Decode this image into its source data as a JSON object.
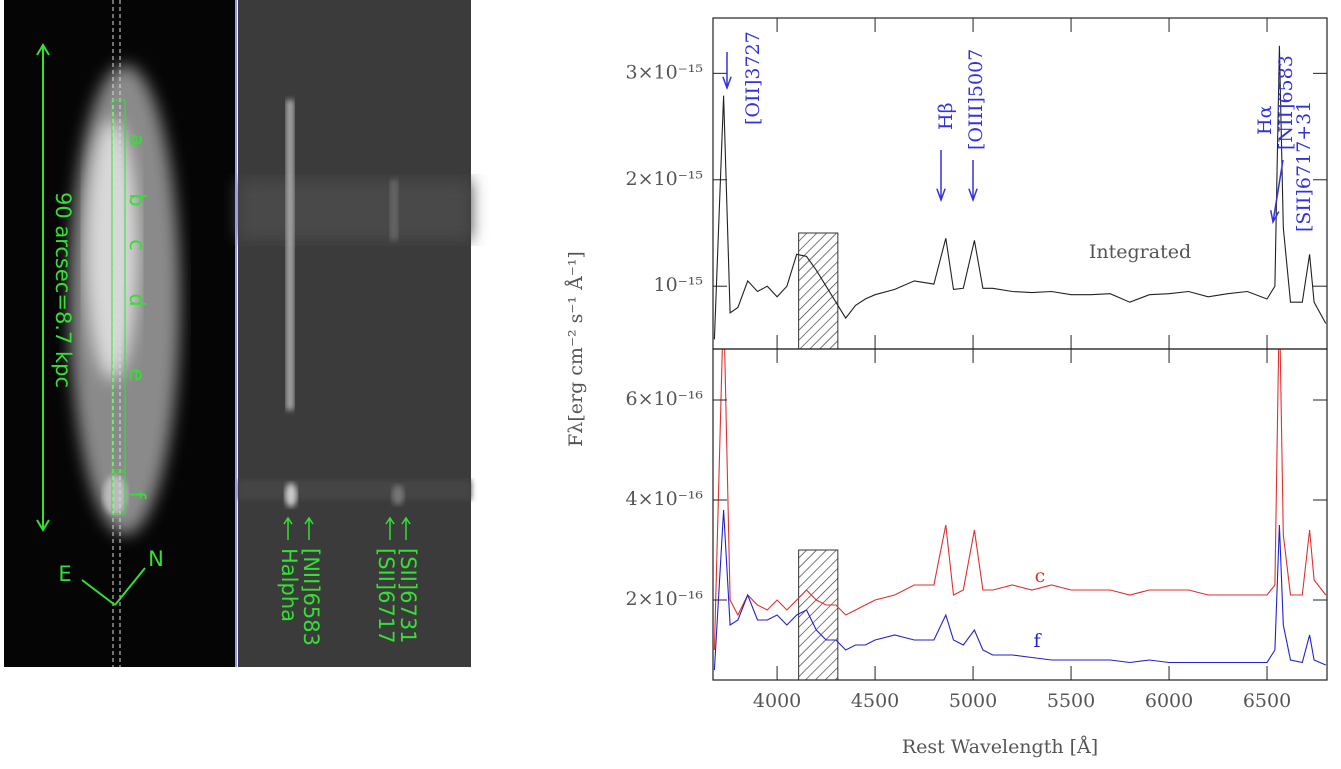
{
  "galaxy_image": {
    "scale_label": "90 arcsec=8.7 kpc",
    "regions": [
      "a",
      "b",
      "c",
      "d",
      "e",
      "f"
    ],
    "compass": [
      "E",
      "N"
    ]
  },
  "spectrum_image": {
    "lines": [
      "Halpha",
      "[NII]6583",
      "[SII]6717",
      "[SII]6731"
    ]
  },
  "chart_data": [
    {
      "type": "line",
      "ylabel": "Fλ[erg cm⁻² s⁻¹ Å⁻¹]",
      "x": [
        3680,
        3727,
        3760,
        3800,
        3850,
        3900,
        3950,
        4000,
        4050,
        4100,
        4150,
        4200,
        4250,
        4300,
        4350,
        4400,
        4450,
        4500,
        4600,
        4700,
        4800,
        4861,
        4900,
        4950,
        5007,
        5050,
        5100,
        5200,
        5300,
        5400,
        5500,
        5600,
        5700,
        5800,
        5900,
        6000,
        6100,
        6200,
        6300,
        6400,
        6500,
        6540,
        6563,
        6583,
        6620,
        6680,
        6717,
        6740,
        6800
      ],
      "series": [
        {
          "name": "Integrated",
          "color": "#222222",
          "values": [
            5e-16,
            2.79e-15,
            7.5e-16,
            8e-16,
            1.05e-15,
            9.5e-16,
            1e-15,
            9e-16,
            1e-15,
            1.3e-15,
            1.28e-15,
            1.15e-15,
            1e-15,
            8.5e-16,
            7e-16,
            8.2e-16,
            8.8e-16,
            9.2e-16,
            9.7e-16,
            1.05e-15,
            1.02e-15,
            1.45e-15,
            9.7e-16,
            9.8e-16,
            1.43e-15,
            9.8e-16,
            9.8e-16,
            9.5e-16,
            9.4e-16,
            9.5e-16,
            9.2e-16,
            9.2e-16,
            9.3e-16,
            8.5e-16,
            9.2e-16,
            9.3e-16,
            9.5e-16,
            9e-16,
            9.3e-16,
            9.5e-16,
            8.8e-16,
            1e-15,
            3.26e-15,
            1.55e-15,
            8.5e-16,
            8.5e-16,
            1.3e-15,
            8.5e-16,
            6.5e-16
          ]
        }
      ],
      "xlim": [
        3673,
        6806
      ],
      "ylim": [
        4.1e-16,
        3.52e-15
      ],
      "yticks": [
        {
          "value": 1e-15,
          "label": "10⁻¹⁵"
        },
        {
          "value": 2e-15,
          "label": "2×10⁻¹⁵"
        },
        {
          "value": 3e-15,
          "label": "3×10⁻¹⁵"
        }
      ],
      "shaded_range": [
        4110,
        4310
      ],
      "annotation_color": "#3333dd",
      "annotations": [
        "[OII]3727",
        "Hβ",
        "[OIII]5007",
        "Hα",
        "[NII]6583",
        "[SII]6717+31"
      ]
    },
    {
      "type": "line",
      "xlabel": "Rest Wavelength [Å]",
      "x": [
        3680,
        3727,
        3760,
        3800,
        3850,
        3900,
        3950,
        4000,
        4050,
        4100,
        4150,
        4200,
        4250,
        4300,
        4350,
        4400,
        4450,
        4500,
        4600,
        4700,
        4800,
        4861,
        4900,
        4950,
        5007,
        5050,
        5100,
        5200,
        5300,
        5400,
        5500,
        5600,
        5700,
        5800,
        5900,
        6000,
        6100,
        6200,
        6300,
        6400,
        6500,
        6540,
        6563,
        6583,
        6620,
        6680,
        6717,
        6740,
        6800
      ],
      "series": [
        {
          "name": "c",
          "color": "#e03030",
          "values": [
            1e-16,
            8e-16,
            2e-16,
            1.7e-16,
            2.1e-16,
            1.9e-16,
            1.8e-16,
            2e-16,
            1.8e-16,
            2e-16,
            2.2e-16,
            2e-16,
            1.9e-16,
            1.9e-16,
            1.7e-16,
            1.8e-16,
            1.9e-16,
            2e-16,
            2.1e-16,
            2.3e-16,
            2.3e-16,
            3.5e-16,
            2.1e-16,
            2.2e-16,
            3.4e-16,
            2.2e-16,
            2.2e-16,
            2.3e-16,
            2.2e-16,
            2.3e-16,
            2.2e-16,
            2.2e-16,
            2.2e-16,
            2.1e-16,
            2.2e-16,
            2.2e-16,
            2.2e-16,
            2.1e-16,
            2.1e-16,
            2.1e-16,
            2.1e-16,
            2.3e-16,
            8e-16,
            3.3e-16,
            2.1e-16,
            2.1e-16,
            3.4e-16,
            2.4e-16,
            2.1e-16
          ]
        },
        {
          "name": "f",
          "color": "#2222cc",
          "values": [
            6e-17,
            3.8e-16,
            1.5e-16,
            1.6e-16,
            2.1e-16,
            1.6e-16,
            1.6e-16,
            1.7e-16,
            1.5e-16,
            1.7e-16,
            1.8e-16,
            1.4e-16,
            1.2e-16,
            1.2e-16,
            1e-16,
            1.1e-16,
            1.1e-16,
            1.2e-16,
            1.3e-16,
            1.2e-16,
            1.2e-16,
            1.7e-16,
            1.2e-16,
            1.1e-16,
            1.4e-16,
            1e-16,
            9e-17,
            9e-17,
            8.5e-17,
            8e-17,
            8e-17,
            8e-17,
            8e-17,
            7.5e-17,
            8e-17,
            7.5e-17,
            7.5e-17,
            7.5e-17,
            7.5e-17,
            7.5e-17,
            7.5e-17,
            1e-16,
            3.5e-16,
            1.5e-16,
            8e-17,
            7.5e-17,
            1.3e-16,
            8e-17,
            7e-17
          ]
        }
      ],
      "xlim": [
        3673,
        6806
      ],
      "ylim": [
        4e-17,
        7.02e-16
      ],
      "xticks": [
        4000,
        4500,
        5000,
        5500,
        6000,
        6500
      ],
      "yticks": [
        {
          "value": 2e-16,
          "label": "2×10⁻¹⁶"
        },
        {
          "value": 4e-16,
          "label": "4×10⁻¹⁶"
        },
        {
          "value": 6e-16,
          "label": "6×10⁻¹⁶"
        }
      ],
      "shaded_range": [
        4110,
        4310
      ]
    }
  ]
}
